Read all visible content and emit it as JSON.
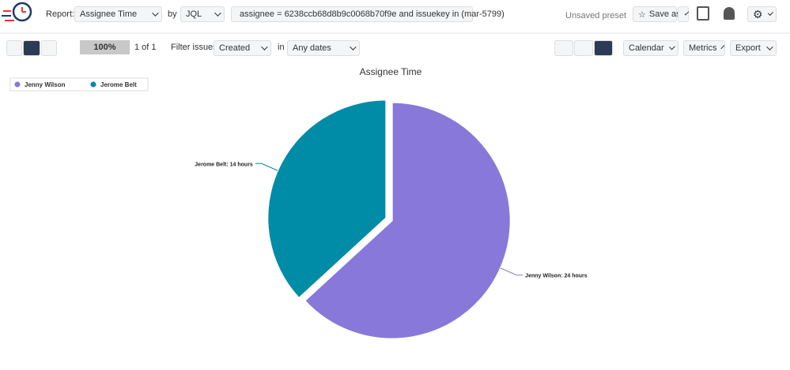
{
  "toolbar": {
    "report_label": "Report:",
    "report": "Assignee Time",
    "by": "by",
    "source": "JQL",
    "query": "assignee = 6238ccb68d8b9c0068b70f9e and issuekey in (mar-5799)",
    "preset": "Unsaved preset",
    "save_as": "Save as"
  },
  "filters": {
    "progress": "100%",
    "pages": "1 of 1",
    "filter_label": "Filter issues:",
    "filter": "Created",
    "in": "in",
    "dates": "Any dates",
    "calendar": "Calendar",
    "metrics": "Metrics",
    "export": "Export"
  },
  "chart_data": {
    "type": "pie",
    "title": "Assignee Time",
    "categories": [
      "Jenny Wilson",
      "Jerome Belt"
    ],
    "values": [
      24,
      14
    ],
    "value_labels": [
      "Jenny Wilson: 24 hours",
      "Jerome Belt: 14 hours"
    ],
    "colors": [
      "#8878d9",
      "#008ba6"
    ],
    "legend": "top-left"
  }
}
